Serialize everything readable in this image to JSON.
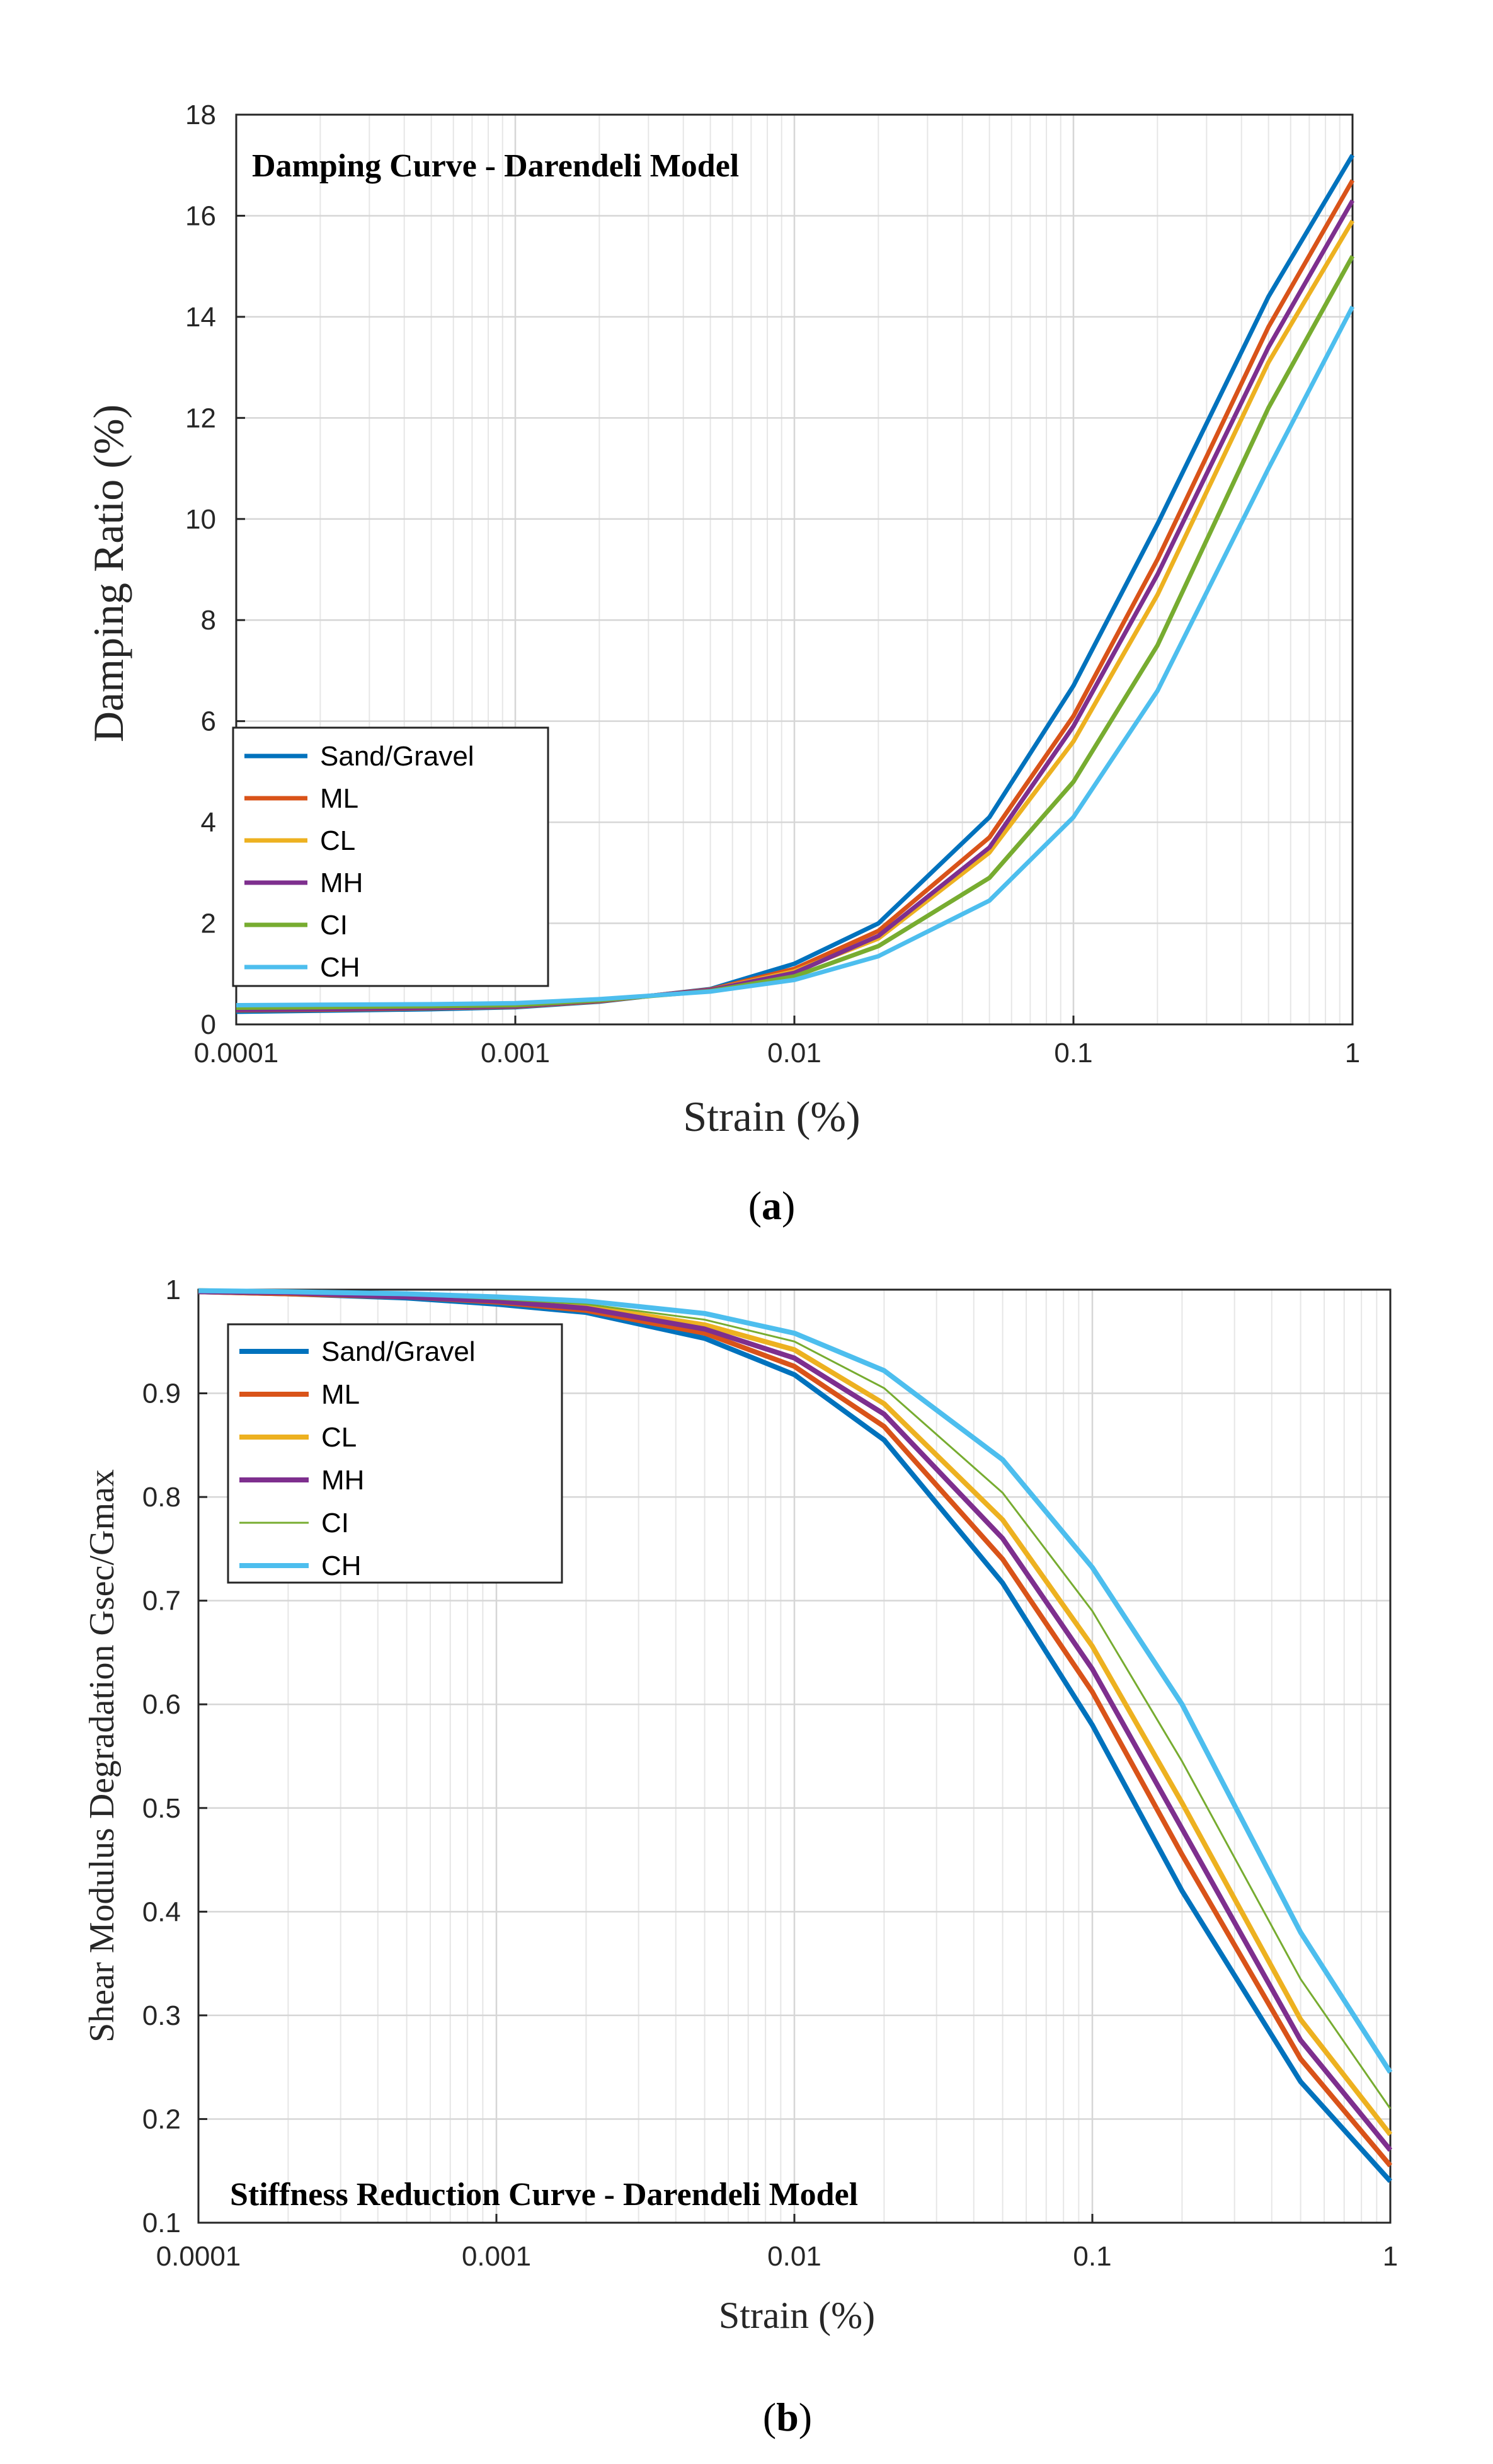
{
  "captions": {
    "a": "a",
    "b": "b"
  },
  "series_colors": [
    "#0072BD",
    "#D95319",
    "#EDB120",
    "#7E2F8E",
    "#77AC30",
    "#4DBEEE"
  ],
  "chart_data": [
    {
      "type": "line",
      "title": "Damping Curve - Darendeli Model",
      "xlabel": "Strain (%)",
      "ylabel": "Damping Ratio (%)",
      "xscale": "log",
      "xlim": [
        0.0001,
        1
      ],
      "ylim": [
        0,
        18
      ],
      "xticks": [
        "0.0001",
        "0.001",
        "0.01",
        "0.1",
        "1"
      ],
      "yticks": [
        "0",
        "2",
        "4",
        "6",
        "8",
        "10",
        "12",
        "14",
        "16",
        "18"
      ],
      "grid": true,
      "legend": "bottom-left",
      "x": [
        0.0001,
        0.0002,
        0.0005,
        0.001,
        0.002,
        0.005,
        0.01,
        0.02,
        0.05,
        0.1,
        0.2,
        0.5,
        1
      ],
      "series": [
        {
          "name": "Sand/Gravel",
          "values": [
            0.25,
            0.27,
            0.3,
            0.34,
            0.45,
            0.7,
            1.2,
            2.0,
            4.1,
            6.7,
            9.9,
            14.4,
            17.2
          ]
        },
        {
          "name": "ML",
          "values": [
            0.28,
            0.29,
            0.32,
            0.35,
            0.46,
            0.69,
            1.1,
            1.85,
            3.7,
            6.1,
            9.2,
            13.8,
            16.7
          ]
        },
        {
          "name": "CL",
          "values": [
            0.3,
            0.31,
            0.33,
            0.36,
            0.47,
            0.68,
            1.05,
            1.7,
            3.4,
            5.6,
            8.5,
            13.1,
            15.9
          ]
        },
        {
          "name": "MH",
          "values": [
            0.29,
            0.3,
            0.33,
            0.36,
            0.47,
            0.68,
            1.02,
            1.75,
            3.5,
            5.9,
            8.9,
            13.4,
            16.3
          ]
        },
        {
          "name": "CI",
          "values": [
            0.33,
            0.34,
            0.36,
            0.38,
            0.48,
            0.66,
            0.95,
            1.55,
            2.9,
            4.8,
            7.5,
            12.2,
            15.2
          ]
        },
        {
          "name": "CH",
          "values": [
            0.38,
            0.39,
            0.4,
            0.42,
            0.5,
            0.65,
            0.88,
            1.35,
            2.45,
            4.1,
            6.6,
            11.0,
            14.2
          ]
        }
      ]
    },
    {
      "type": "line",
      "title": "Stiffness Reduction Curve - Darendeli Model",
      "xlabel": "Strain (%)",
      "ylabel": "Shear Modulus Degradation Gsec/Gmax",
      "xscale": "log",
      "xlim": [
        0.0001,
        1
      ],
      "ylim": [
        0.1,
        1
      ],
      "xticks": [
        "0.0001",
        "0.001",
        "0.01",
        "0.1",
        "1"
      ],
      "yticks": [
        "0.1",
        "0.2",
        "0.3",
        "0.4",
        "0.5",
        "0.6",
        "0.7",
        "0.8",
        "0.9",
        "1"
      ],
      "grid": true,
      "legend": "top-left",
      "x": [
        0.0001,
        0.0002,
        0.0005,
        0.001,
        0.002,
        0.005,
        0.01,
        0.02,
        0.05,
        0.1,
        0.2,
        0.5,
        1
      ],
      "series": [
        {
          "name": "Sand/Gravel",
          "values": [
            0.998,
            0.996,
            0.992,
            0.986,
            0.978,
            0.953,
            0.918,
            0.855,
            0.717,
            0.58,
            0.42,
            0.236,
            0.14
          ]
        },
        {
          "name": "ML",
          "values": [
            0.998,
            0.996,
            0.993,
            0.988,
            0.98,
            0.958,
            0.926,
            0.868,
            0.74,
            0.612,
            0.455,
            0.258,
            0.155
          ]
        },
        {
          "name": "CL",
          "values": [
            0.999,
            0.997,
            0.994,
            0.99,
            0.984,
            0.966,
            0.942,
            0.89,
            0.778,
            0.656,
            0.505,
            0.296,
            0.185
          ]
        },
        {
          "name": "MH",
          "values": [
            0.998,
            0.997,
            0.993,
            0.989,
            0.982,
            0.962,
            0.934,
            0.88,
            0.76,
            0.634,
            0.48,
            0.276,
            0.17
          ]
        },
        {
          "name": "CI",
          "values": [
            0.999,
            0.998,
            0.995,
            0.991,
            0.986,
            0.971,
            0.95,
            0.905,
            0.804,
            0.69,
            0.545,
            0.335,
            0.21
          ]
        },
        {
          "name": "CH",
          "values": [
            0.999,
            0.998,
            0.996,
            0.993,
            0.989,
            0.977,
            0.958,
            0.922,
            0.836,
            0.732,
            0.6,
            0.38,
            0.245
          ]
        }
      ]
    }
  ]
}
